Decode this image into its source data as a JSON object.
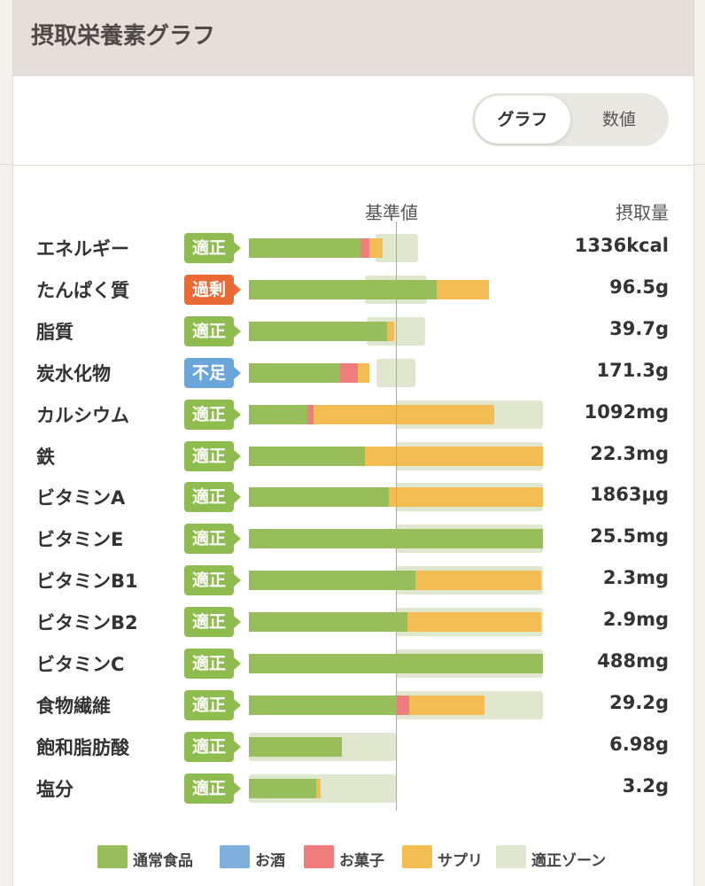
{
  "header": {
    "title": "摂取栄養素グラフ"
  },
  "toggle": {
    "graph": "グラフ",
    "numeric": "数値"
  },
  "columns": {
    "reference": "基準値",
    "intake": "摂取量"
  },
  "colors": {
    "normal_food": "#97be5b",
    "alcohol": "#7fb0dd",
    "snack": "#ef7d7d",
    "supplement": "#f3bd54",
    "zone": "#dfe8cf",
    "status_ok": "#8fbc4f",
    "status_excess": "#ea6a36",
    "status_short": "#6aa6da"
  },
  "chart_data": {
    "type": "bar",
    "stacked": true,
    "reference_line": 1.0,
    "series": [
      "normal_food",
      "alcohol",
      "snack",
      "supplement"
    ],
    "rows": [
      {
        "name": "エネルギー",
        "status": "適正",
        "status_type": "ok",
        "value": "1336kcal",
        "zone": [
          0.86,
          1.15
        ],
        "normal_food": 0.76,
        "alcohol": 0,
        "snack": 0.06,
        "supplement": 0.09
      },
      {
        "name": "たんぱく質",
        "status": "過剰",
        "status_type": "excess",
        "value": "96.5g",
        "zone": [
          0.79,
          1.21
        ],
        "normal_food": 1.28,
        "alcohol": 0,
        "snack": 0,
        "supplement": 0.35
      },
      {
        "name": "脂質",
        "status": "適正",
        "status_type": "ok",
        "value": "39.7g",
        "zone": [
          0.8,
          1.2
        ],
        "normal_food": 0.94,
        "alcohol": 0,
        "snack": 0,
        "supplement": 0.05
      },
      {
        "name": "炭水化物",
        "status": "不足",
        "status_type": "short",
        "value": "171.3g",
        "zone": [
          0.87,
          1.13
        ],
        "normal_food": 0.62,
        "alcohol": 0,
        "snack": 0.12,
        "supplement": 0.08
      },
      {
        "name": "カルシウム",
        "status": "適正",
        "status_type": "ok",
        "value": "1092mg",
        "zone": [
          1.0,
          2.0
        ],
        "normal_food": 0.4,
        "alcohol": 0,
        "snack": 0.04,
        "supplement": 1.23
      },
      {
        "name": "鉄",
        "status": "適正",
        "status_type": "ok",
        "value": "22.3mg",
        "zone": [
          1.0,
          2.0
        ],
        "normal_food": 0.79,
        "alcohol": 0,
        "snack": 0,
        "supplement": 1.21
      },
      {
        "name": "ビタミンA",
        "status": "適正",
        "status_type": "ok",
        "value": "1863μg",
        "zone": [
          1.0,
          2.0
        ],
        "normal_food": 0.95,
        "alcohol": 0,
        "snack": 0,
        "supplement": 1.05
      },
      {
        "name": "ビタミンE",
        "status": "適正",
        "status_type": "ok",
        "value": "25.5mg",
        "zone": [
          1.0,
          2.0
        ],
        "normal_food": 2.0,
        "alcohol": 0,
        "snack": 0,
        "supplement": 0
      },
      {
        "name": "ビタミンB1",
        "status": "適正",
        "status_type": "ok",
        "value": "2.3mg",
        "zone": [
          1.0,
          2.0
        ],
        "normal_food": 1.13,
        "alcohol": 0,
        "snack": 0,
        "supplement": 0.86
      },
      {
        "name": "ビタミンB2",
        "status": "適正",
        "status_type": "ok",
        "value": "2.9mg",
        "zone": [
          1.0,
          2.0
        ],
        "normal_food": 1.08,
        "alcohol": 0,
        "snack": 0,
        "supplement": 0.91
      },
      {
        "name": "ビタミンC",
        "status": "適正",
        "status_type": "ok",
        "value": "488mg",
        "zone": [
          1.0,
          2.0
        ],
        "normal_food": 2.0,
        "alcohol": 0,
        "snack": 0,
        "supplement": 0
      },
      {
        "name": "食物繊維",
        "status": "適正",
        "status_type": "ok",
        "value": "29.2g",
        "zone": [
          1.0,
          2.0
        ],
        "normal_food": 1.0,
        "alcohol": 0,
        "snack": 0.09,
        "supplement": 0.51
      },
      {
        "name": "飽和脂肪酸",
        "status": "適正",
        "status_type": "ok",
        "value": "6.98g",
        "zone": [
          0.0,
          1.0
        ],
        "normal_food": 0.63,
        "alcohol": 0,
        "snack": 0,
        "supplement": 0
      },
      {
        "name": "塩分",
        "status": "適正",
        "status_type": "ok",
        "value": "3.2g",
        "zone": [
          0.0,
          1.0
        ],
        "normal_food": 0.46,
        "alcohol": 0,
        "snack": 0,
        "supplement": 0.03
      }
    ]
  },
  "legend": [
    {
      "key": "normal_food",
      "label": "通常食品"
    },
    {
      "key": "alcohol",
      "label": "お酒"
    },
    {
      "key": "snack",
      "label": "お菓子"
    },
    {
      "key": "supplement",
      "label": "サプリ"
    },
    {
      "key": "zone",
      "label": "適正ゾーン"
    }
  ]
}
